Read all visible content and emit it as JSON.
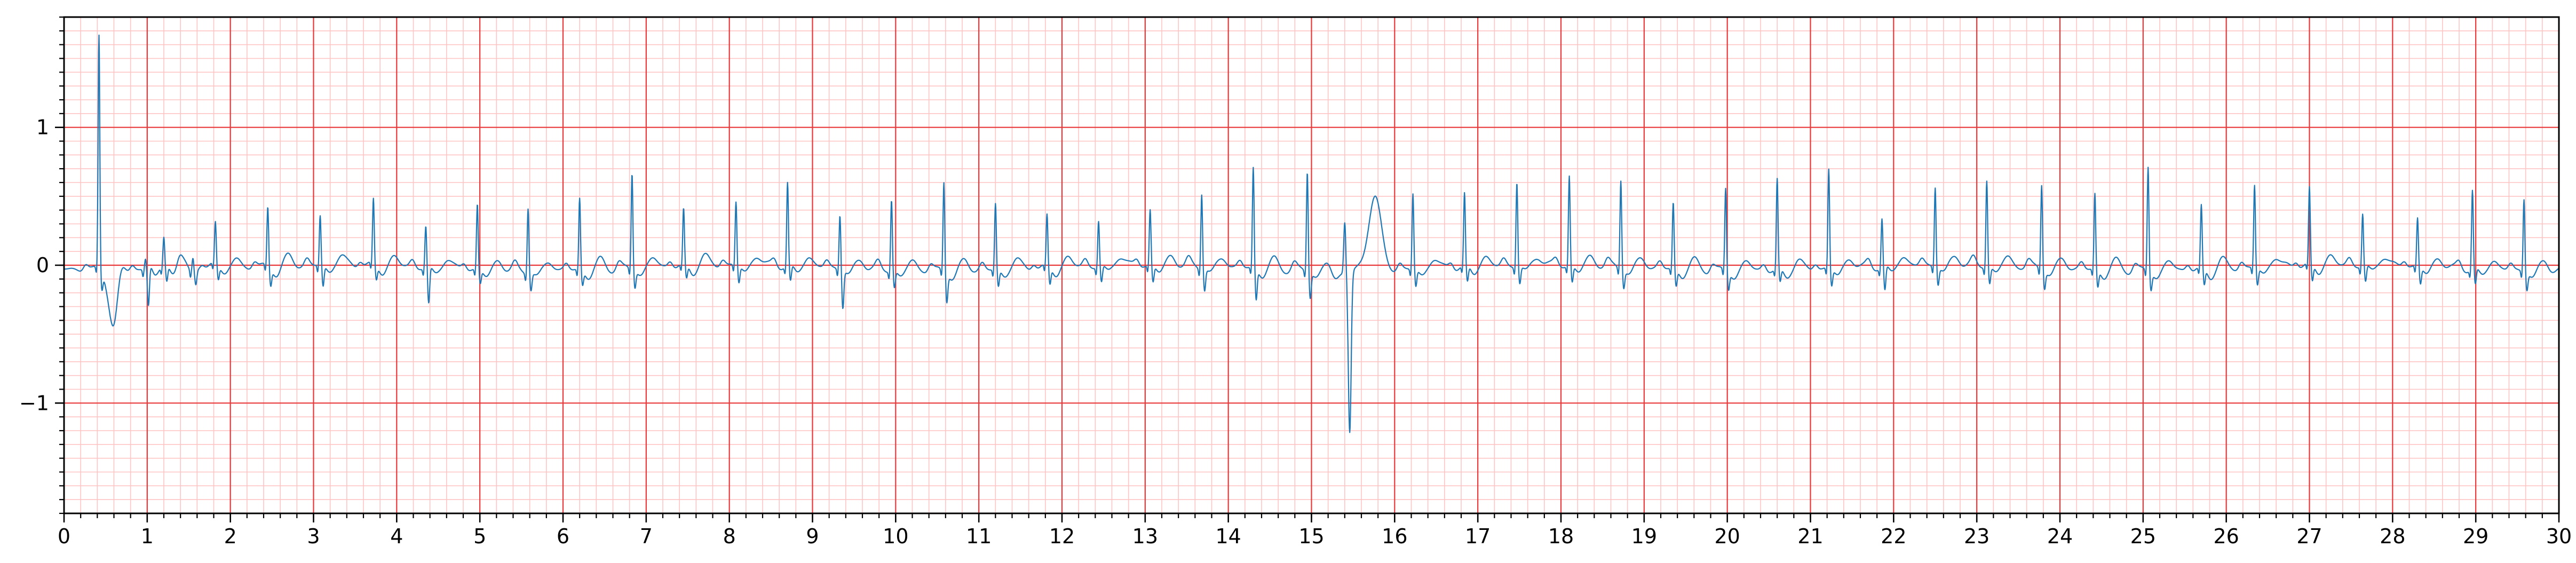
{
  "chart_data": {
    "type": "line",
    "title": "",
    "xlabel": "",
    "ylabel": "",
    "xlim": [
      0,
      30
    ],
    "ylim": [
      -1.8,
      1.8
    ],
    "x_ticks": [
      0,
      1,
      2,
      3,
      4,
      5,
      6,
      7,
      8,
      9,
      10,
      11,
      12,
      13,
      14,
      15,
      16,
      17,
      18,
      19,
      20,
      21,
      22,
      23,
      24,
      25,
      26,
      27,
      28,
      29,
      30
    ],
    "x_tick_labels": [
      "0",
      "1",
      "2",
      "3",
      "4",
      "5",
      "6",
      "7",
      "8",
      "9",
      "10",
      "11",
      "12",
      "13",
      "14",
      "15",
      "16",
      "17",
      "18",
      "19",
      "20",
      "21",
      "22",
      "23",
      "24",
      "25",
      "26",
      "27",
      "28",
      "29",
      "30"
    ],
    "y_ticks": [
      -1,
      0,
      1
    ],
    "y_tick_labels": [
      "−1",
      "0",
      "1"
    ],
    "grid": {
      "major_x_step": 1,
      "minor_x_step": 0.2,
      "major_y_step": 1,
      "minor_y_step": 0.1,
      "major_color": "#e8383a",
      "minor_color": "#ffc4c4"
    },
    "series": [
      {
        "color": "#1f77b4",
        "beats": [
          {
            "t": 0.42,
            "r": 1.7,
            "s": -0.12
          },
          {
            "t": 0.98,
            "r": 0.08,
            "s": -0.28
          },
          {
            "t": 1.2,
            "r": 0.2,
            "s": -0.12
          },
          {
            "t": 1.55,
            "r": 0.1,
            "s": -0.1
          },
          {
            "t": 1.82,
            "r": 0.3,
            "s": -0.1
          },
          {
            "t": 2.45,
            "r": 0.43,
            "s": -0.12
          },
          {
            "t": 3.08,
            "r": 0.36,
            "s": -0.15
          },
          {
            "t": 3.72,
            "r": 0.47,
            "s": -0.1
          },
          {
            "t": 4.35,
            "r": 0.3,
            "s": -0.27
          },
          {
            "t": 4.97,
            "r": 0.47,
            "s": -0.1
          },
          {
            "t": 5.58,
            "r": 0.48,
            "s": -0.12
          },
          {
            "t": 6.2,
            "r": 0.52,
            "s": -0.1
          },
          {
            "t": 6.83,
            "r": 0.7,
            "s": -0.12
          },
          {
            "t": 7.45,
            "r": 0.4,
            "s": -0.1
          },
          {
            "t": 8.08,
            "r": 0.46,
            "s": -0.12
          },
          {
            "t": 8.7,
            "r": 0.6,
            "s": -0.12
          },
          {
            "t": 9.33,
            "r": 0.4,
            "s": -0.27
          },
          {
            "t": 9.95,
            "r": 0.52,
            "s": -0.12
          },
          {
            "t": 10.58,
            "r": 0.65,
            "s": -0.2
          },
          {
            "t": 11.2,
            "r": 0.48,
            "s": -0.12
          },
          {
            "t": 11.82,
            "r": 0.37,
            "s": -0.12
          },
          {
            "t": 12.44,
            "r": 0.33,
            "s": -0.12
          },
          {
            "t": 13.06,
            "r": 0.4,
            "s": -0.12
          },
          {
            "t": 13.68,
            "r": 0.55,
            "s": -0.15
          },
          {
            "t": 14.3,
            "r": 0.73,
            "s": -0.22
          },
          {
            "t": 14.95,
            "r": 0.73,
            "s": -0.18
          },
          {
            "t": 15.43,
            "r": 0.37,
            "s": -1.16,
            "pvc": true
          },
          {
            "t": 16.22,
            "r": 0.55,
            "s": -0.12
          },
          {
            "t": 16.84,
            "r": 0.52,
            "s": -0.12
          },
          {
            "t": 17.47,
            "r": 0.62,
            "s": -0.12
          },
          {
            "t": 18.1,
            "r": 0.65,
            "s": -0.12
          },
          {
            "t": 18.72,
            "r": 0.65,
            "s": -0.12
          },
          {
            "t": 19.35,
            "r": 0.48,
            "s": -0.12
          },
          {
            "t": 19.98,
            "r": 0.6,
            "s": -0.12
          },
          {
            "t": 20.6,
            "r": 0.65,
            "s": -0.1
          },
          {
            "t": 21.22,
            "r": 0.72,
            "s": -0.12
          },
          {
            "t": 21.86,
            "r": 0.35,
            "s": -0.18
          },
          {
            "t": 22.5,
            "r": 0.58,
            "s": -0.12
          },
          {
            "t": 23.12,
            "r": 0.63,
            "s": -0.12
          },
          {
            "t": 23.78,
            "r": 0.62,
            "s": -0.12
          },
          {
            "t": 24.42,
            "r": 0.55,
            "s": -0.12
          },
          {
            "t": 25.06,
            "r": 0.76,
            "s": -0.12
          },
          {
            "t": 25.7,
            "r": 0.45,
            "s": -0.12
          },
          {
            "t": 26.34,
            "r": 0.6,
            "s": -0.12
          },
          {
            "t": 27.0,
            "r": 0.55,
            "s": -0.12
          },
          {
            "t": 27.64,
            "r": 0.38,
            "s": -0.12
          },
          {
            "t": 28.3,
            "r": 0.35,
            "s": -0.12
          },
          {
            "t": 28.96,
            "r": 0.57,
            "s": -0.12
          },
          {
            "t": 29.58,
            "r": 0.53,
            "s": -0.12
          }
        ]
      }
    ]
  }
}
